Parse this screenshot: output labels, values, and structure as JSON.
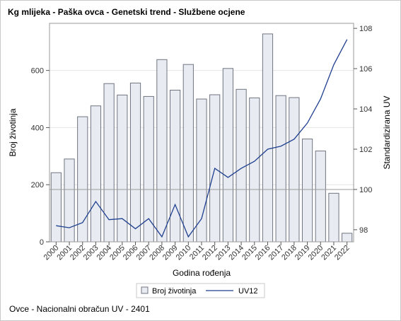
{
  "title": "Kg mlijeka - Paška ovca - Genetski trend - Službene ocjene",
  "footnote": "Ovce - Nacionalni obračun UV - 2401",
  "chart_data": {
    "type": "bar+line",
    "categories": [
      "2000",
      "2001",
      "2002",
      "2003",
      "2004",
      "2005",
      "2006",
      "2007",
      "2008",
      "2009",
      "2010",
      "2011",
      "2012",
      "2013",
      "2014",
      "2015",
      "2016",
      "2017",
      "2018",
      "2019",
      "2020",
      "2021",
      "2022"
    ],
    "series": [
      {
        "name": "Broj životinja",
        "type": "bar",
        "axis": "left",
        "color": "#e8ecf2",
        "stroke": "#6f7480",
        "values": [
          242,
          290,
          438,
          476,
          554,
          514,
          556,
          509,
          638,
          531,
          621,
          500,
          515,
          607,
          534,
          504,
          728,
          512,
          505,
          360,
          318,
          170,
          30
        ]
      },
      {
        "name": "UV12",
        "type": "line",
        "axis": "right",
        "color": "#1f3f8f",
        "values": [
          98.2,
          98.1,
          98.35,
          99.4,
          98.5,
          98.55,
          98.05,
          98.55,
          97.65,
          99.25,
          97.65,
          98.55,
          101.05,
          100.6,
          101.05,
          101.4,
          102.0,
          102.15,
          102.5,
          103.3,
          104.5,
          106.2,
          107.45
        ]
      }
    ],
    "xlabel": "Godina rođenja",
    "ylabel_left": "Broj životinja",
    "ylabel_right": "Standardizirana UV",
    "ylim_left": [
      0,
      765
    ],
    "yticks_left": [
      0,
      200,
      400,
      600
    ],
    "ylim_right": [
      97.4,
      108.25
    ],
    "yticks_right": [
      98,
      100,
      102,
      104,
      106,
      108
    ],
    "reference_line_right": 100,
    "grid": "horizontal",
    "legend": "bottom-center"
  }
}
